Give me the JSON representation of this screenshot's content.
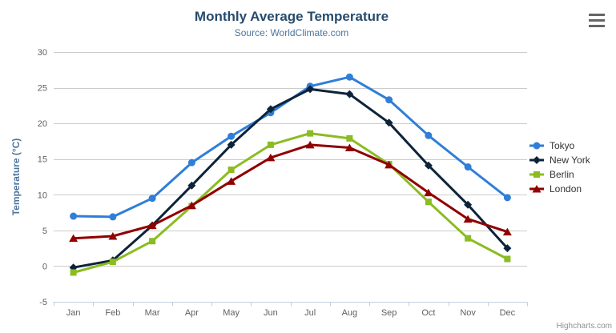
{
  "header": {
    "title": "Monthly Average Temperature",
    "subtitle": "Source: WorldClimate.com"
  },
  "chart_data": {
    "type": "line",
    "title": "Monthly Average Temperature",
    "subtitle": "Source: WorldClimate.com",
    "categories": [
      "Jan",
      "Feb",
      "Mar",
      "Apr",
      "May",
      "Jun",
      "Jul",
      "Aug",
      "Sep",
      "Oct",
      "Nov",
      "Dec"
    ],
    "xlabel": "",
    "ylabel": "Temperature (°C)",
    "ylim": [
      -5,
      30
    ],
    "yticks": [
      -5,
      0,
      5,
      10,
      15,
      20,
      25,
      30
    ],
    "grid": true,
    "legend_position": "right",
    "series": [
      {
        "name": "Tokyo",
        "color": "#2f7ed8",
        "marker": "circle",
        "values": [
          7.0,
          6.9,
          9.5,
          14.5,
          18.2,
          21.5,
          25.2,
          26.5,
          23.3,
          18.3,
          13.9,
          9.6
        ]
      },
      {
        "name": "New York",
        "color": "#0d233a",
        "marker": "diamond",
        "values": [
          -0.2,
          0.8,
          5.7,
          11.3,
          17.0,
          22.0,
          24.8,
          24.1,
          20.1,
          14.1,
          8.6,
          2.5
        ]
      },
      {
        "name": "Berlin",
        "color": "#8bbc21",
        "marker": "square",
        "values": [
          -0.9,
          0.6,
          3.5,
          8.4,
          13.5,
          17.0,
          18.6,
          17.9,
          14.3,
          9.0,
          3.9,
          1.0
        ]
      },
      {
        "name": "London",
        "color": "#910000",
        "marker": "triangle",
        "values": [
          3.9,
          4.2,
          5.7,
          8.5,
          11.9,
          15.2,
          17.0,
          16.6,
          14.2,
          10.3,
          6.6,
          4.8
        ]
      }
    ]
  },
  "colors": {
    "background": "#ffffff",
    "title": "#274b6d",
    "subtitle": "#4d759e",
    "axis_title": "#4d759e",
    "tick_label": "#606060",
    "gridline": "#cccccc",
    "axis_line": "#c0d0e0",
    "legend_text": "#333333",
    "credit": "#909090",
    "menu_icon": "#666666"
  },
  "icons": {
    "export_menu": "hamburger-menu-icon"
  },
  "credit": {
    "label": "Highcharts.com"
  }
}
